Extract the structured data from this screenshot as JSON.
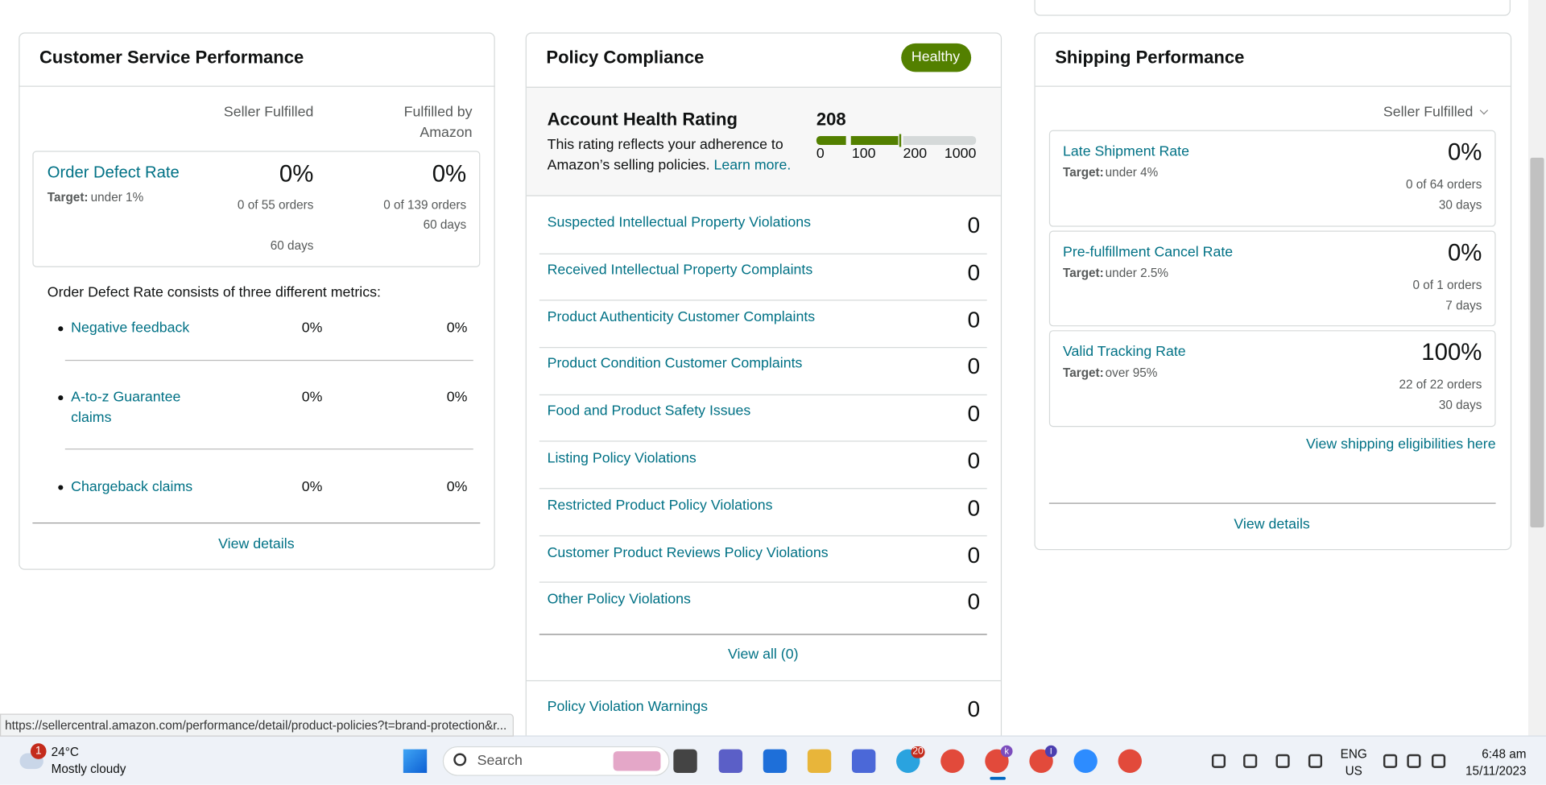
{
  "customer_service": {
    "title": "Customer Service Performance",
    "columns": [
      "Seller Fulfilled",
      "Fulfilled by Amazon"
    ],
    "odr": {
      "name": "Order Defect Rate",
      "target_label": "Target:",
      "target": "under 1%",
      "seller": {
        "value": "0%",
        "detail": "0 of 55 orders",
        "period": "60 days"
      },
      "fba": {
        "value": "0%",
        "detail": "0 of 139 orders",
        "period": "60 days"
      }
    },
    "consists": "Order Defect Rate consists of three different metrics:",
    "metrics": [
      {
        "name": "Negative feedback",
        "seller": "0%",
        "fba": "0%"
      },
      {
        "name": "A-to-z Guarantee claims",
        "seller": "0%",
        "fba": "0%"
      },
      {
        "name": "Chargeback claims",
        "seller": "0%",
        "fba": "0%"
      }
    ],
    "view_details": "View details"
  },
  "policy": {
    "title": "Policy Compliance",
    "badge": "Healthy",
    "ahr": {
      "title": "Account Health Rating",
      "rating": 208,
      "description": "This rating reflects your adherence to Amazon’s selling policies.",
      "learn_more": "Learn more.",
      "scale": [
        0,
        100,
        200,
        1000
      ]
    },
    "violations": [
      {
        "name": "Suspected Intellectual Property Violations",
        "count": 0
      },
      {
        "name": "Received Intellectual Property Complaints",
        "count": 0
      },
      {
        "name": "Product Authenticity Customer Complaints",
        "count": 0
      },
      {
        "name": "Product Condition Customer Complaints",
        "count": 0
      },
      {
        "name": "Food and Product Safety Issues",
        "count": 0
      },
      {
        "name": "Listing Policy Violations",
        "count": 0
      },
      {
        "name": "Restricted Product Policy Violations",
        "count": 0
      },
      {
        "name": "Customer Product Reviews Policy Violations",
        "count": 0
      },
      {
        "name": "Other Policy Violations",
        "count": 0
      }
    ],
    "view_all": "View all (0)",
    "warnings": {
      "name": "Policy Violation Warnings",
      "count": 0
    }
  },
  "shipping": {
    "title": "Shipping Performance",
    "dropdown": "Seller Fulfilled",
    "metrics": [
      {
        "name": "Late Shipment Rate",
        "target_label": "Target:",
        "target": "under 4%",
        "value": "0%",
        "detail": "0 of 64 orders",
        "period": "30 days"
      },
      {
        "name": "Pre-fulfillment Cancel Rate",
        "target_label": "Target:",
        "target": "under 2.5%",
        "value": "0%",
        "detail": "0 of 1 orders",
        "period": "7 days"
      },
      {
        "name": "Valid Tracking Rate",
        "target_label": "Target:",
        "target": "over 95%",
        "value": "100%",
        "detail": "22 of 22 orders",
        "period": "30 days"
      }
    ],
    "eligibility_link": "View shipping eligibilities here",
    "view_details": "View details"
  },
  "status_url": "https://sellercentral.amazon.com/performance/detail/product-policies?t=brand-protection&r...",
  "taskbar": {
    "weather_badge": "1",
    "temperature": "24°C",
    "weather": "Mostly cloudy",
    "search": "Search",
    "telegram_badge": "20",
    "chrome_badge_1": "k",
    "chrome_badge_2": "I",
    "language": "ENG",
    "region": "US",
    "time": "6:48 am",
    "date": "15/11/2023"
  }
}
